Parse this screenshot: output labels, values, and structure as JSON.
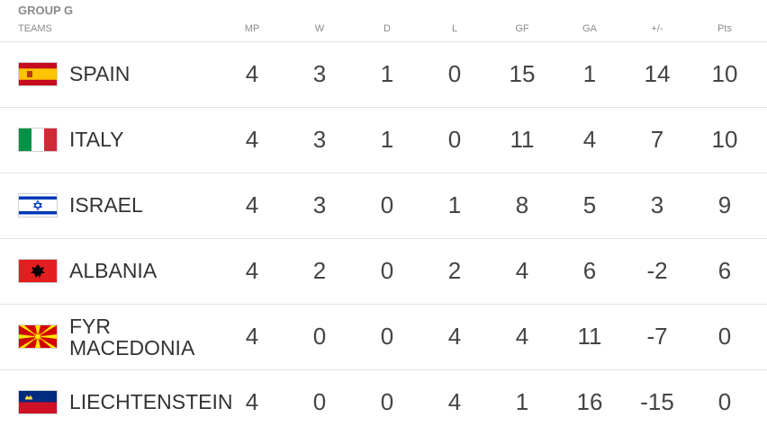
{
  "group_title": "GROUP G",
  "columns": {
    "teams": "TEAMS",
    "mp": "MP",
    "w": "W",
    "d": "D",
    "l": "L",
    "gf": "GF",
    "ga": "GA",
    "gd": "+/-",
    "pts": "Pts"
  },
  "rows": [
    {
      "team": "SPAIN",
      "team_line2": "",
      "flag": "spain-flag",
      "mp": "4",
      "w": "3",
      "d": "1",
      "l": "0",
      "gf": "15",
      "ga": "1",
      "gd": "14",
      "pts": "10"
    },
    {
      "team": "ITALY",
      "team_line2": "",
      "flag": "italy-flag",
      "mp": "4",
      "w": "3",
      "d": "1",
      "l": "0",
      "gf": "11",
      "ga": "4",
      "gd": "7",
      "pts": "10"
    },
    {
      "team": "ISRAEL",
      "team_line2": "",
      "flag": "israel-flag",
      "mp": "4",
      "w": "3",
      "d": "0",
      "l": "1",
      "gf": "8",
      "ga": "5",
      "gd": "3",
      "pts": "9"
    },
    {
      "team": "ALBANIA",
      "team_line2": "",
      "flag": "albania-flag",
      "mp": "4",
      "w": "2",
      "d": "0",
      "l": "2",
      "gf": "4",
      "ga": "6",
      "gd": "-2",
      "pts": "6"
    },
    {
      "team": "FYR",
      "team_line2": "MACEDONIA",
      "flag": "macedonia-flag",
      "mp": "4",
      "w": "0",
      "d": "0",
      "l": "4",
      "gf": "4",
      "ga": "11",
      "gd": "-7",
      "pts": "0"
    },
    {
      "team": "LIECHTENSTEIN",
      "team_line2": "",
      "flag": "liechtenstein-flag",
      "mp": "4",
      "w": "0",
      "d": "0",
      "l": "4",
      "gf": "1",
      "ga": "16",
      "gd": "-15",
      "pts": "0"
    }
  ],
  "colors": {
    "header_text": "#8a8a8a",
    "row_divider": "#e3e3e3",
    "team_text": "#333333"
  }
}
